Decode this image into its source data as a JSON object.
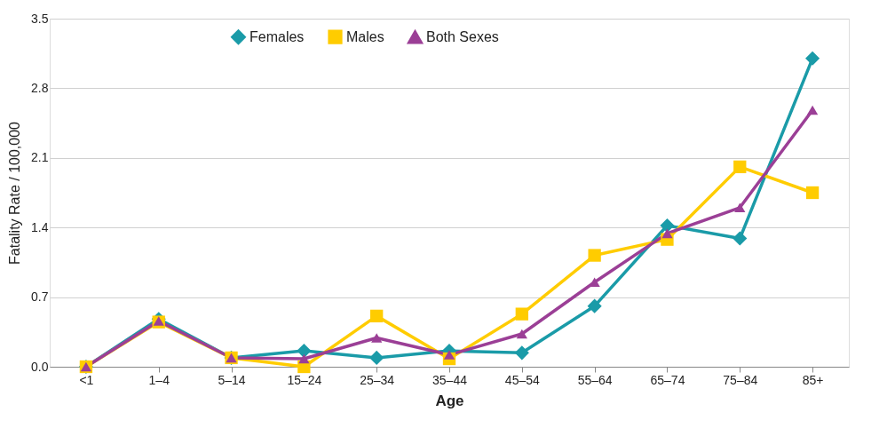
{
  "chart_data": {
    "type": "line",
    "xlabel": "Age",
    "ylabel": "Fatality Rate / 100,000",
    "categories": [
      "<1",
      "1–4",
      "5–14",
      "15–24",
      "25–34",
      "35–44",
      "45–54",
      "55–64",
      "65–74",
      "75–84",
      "85+"
    ],
    "series": [
      {
        "name": "Females",
        "color": "#1a9ba8",
        "marker": "diamond",
        "values": [
          0.0,
          0.48,
          0.09,
          0.16,
          0.09,
          0.16,
          0.14,
          0.61,
          1.42,
          1.29,
          3.1
        ]
      },
      {
        "name": "Males",
        "color": "#ffcc00",
        "marker": "square",
        "values": [
          0.0,
          0.45,
          0.09,
          0.0,
          0.51,
          0.08,
          0.53,
          1.12,
          1.28,
          2.01,
          1.75
        ]
      },
      {
        "name": "Both Sexes",
        "color": "#9b3f96",
        "marker": "triangle",
        "values": [
          0.0,
          0.46,
          0.09,
          0.08,
          0.29,
          0.12,
          0.33,
          0.85,
          1.34,
          1.6,
          2.58
        ]
      }
    ],
    "ylim": [
      0,
      3.5
    ],
    "yticks": [
      {
        "value": 0,
        "label": "0.0"
      },
      {
        "value": 0.7,
        "label": "0.7"
      },
      {
        "value": 1.4,
        "label": "1.4"
      },
      {
        "value": 2.1,
        "label": "2.1"
      },
      {
        "value": 2.8,
        "label": "2.8"
      },
      {
        "value": 3.5,
        "label": "3.5"
      }
    ],
    "grid": "y",
    "legend": "top",
    "line_style": "solid"
  }
}
